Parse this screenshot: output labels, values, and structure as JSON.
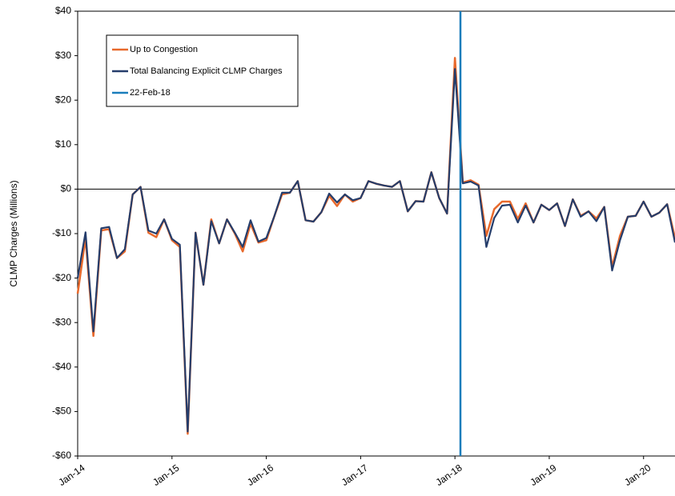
{
  "chart_data": {
    "type": "line",
    "y_label": "CLMP Charges (Millions)",
    "categories": [
      "Jan-14",
      null,
      null,
      null,
      null,
      null,
      null,
      null,
      null,
      null,
      null,
      null,
      "Jan-15",
      null,
      null,
      null,
      null,
      null,
      null,
      null,
      null,
      null,
      null,
      null,
      "Jan-16",
      null,
      null,
      null,
      null,
      null,
      null,
      null,
      null,
      null,
      null,
      null,
      "Jan-17",
      null,
      null,
      null,
      null,
      null,
      null,
      null,
      null,
      null,
      null,
      null,
      "Jan-18",
      null,
      null,
      null,
      null,
      null,
      null,
      null,
      null,
      null,
      null,
      null,
      "Jan-19",
      null,
      null,
      null,
      null,
      null,
      null,
      null,
      null,
      null,
      null,
      null,
      "Jan-20",
      null,
      null,
      null,
      null
    ],
    "series": [
      {
        "name": "Up to Congestion",
        "color": "#e8692c",
        "values": [
          -23.5,
          -11,
          -33,
          -9.3,
          -9,
          -15.5,
          -14,
          -1.2,
          0.5,
          -9.8,
          -10.8,
          -6.8,
          -11.5,
          -13,
          -55,
          -9.8,
          -21.5,
          -6.8,
          -12.2,
          -6.8,
          -10,
          -14,
          -7.8,
          -12,
          -11.5,
          -6.2,
          -1.2,
          -0.8,
          1.8,
          -7,
          -7.3,
          -5.2,
          -1.5,
          -3.8,
          -1.2,
          -2.8,
          -2,
          1.8,
          1.2,
          0.8,
          0.5,
          1.8,
          -5,
          -2.7,
          -2.8,
          3.8,
          -2,
          -5.5,
          29.5,
          1.5,
          2,
          1,
          -10.5,
          -4.5,
          -2.8,
          -2.8,
          -6.7,
          -3.2,
          -7.5,
          -3.5,
          -4.7,
          -3.2,
          -8.3,
          -2.3,
          -6,
          -5,
          -6.6,
          -4,
          -17.5,
          -10.5,
          -6.2,
          -6,
          -2.8,
          -6.2,
          -5.3,
          -3.4,
          -11
        ]
      },
      {
        "name": "Total Balancing Explicit CLMP Charges",
        "color": "#253d6b",
        "values": [
          -20,
          -9.7,
          -32,
          -8.8,
          -8.5,
          -15.5,
          -13.5,
          -1.2,
          0.5,
          -9.3,
          -10,
          -6.8,
          -11.2,
          -12.5,
          -54.5,
          -9.8,
          -21.5,
          -7.2,
          -12.2,
          -6.8,
          -9.8,
          -13,
          -7,
          -11.8,
          -11,
          -6.2,
          -0.8,
          -0.8,
          1.8,
          -7,
          -7.3,
          -5.2,
          -1,
          -3,
          -1.2,
          -2.5,
          -2,
          1.8,
          1.2,
          0.8,
          0.5,
          1.8,
          -5,
          -2.7,
          -2.8,
          3.8,
          -2,
          -5.5,
          27,
          1.3,
          1.7,
          0.8,
          -13,
          -6.5,
          -3.7,
          -3.5,
          -7.5,
          -3.7,
          -7.5,
          -3.5,
          -4.7,
          -3.2,
          -8.3,
          -2.3,
          -6.2,
          -5,
          -7.2,
          -4,
          -18.3,
          -11.5,
          -6.2,
          -6,
          -2.8,
          -6.2,
          -5.3,
          -3.4,
          -12
        ]
      }
    ],
    "vline": {
      "name": "22-Feb-18",
      "x": 48.7,
      "color": "#1a7dbb"
    },
    "ylim": [
      -60,
      40
    ],
    "yticks": [
      {
        "value": -60,
        "label": "-$60"
      },
      {
        "value": -50,
        "label": "-$50"
      },
      {
        "value": -40,
        "label": "-$40"
      },
      {
        "value": -30,
        "label": "-$30"
      },
      {
        "value": -20,
        "label": "-$20"
      },
      {
        "value": -10,
        "label": "-$10"
      },
      {
        "value": 0,
        "label": "$0"
      },
      {
        "value": 10,
        "label": "$10"
      },
      {
        "value": 20,
        "label": "$20"
      },
      {
        "value": 30,
        "label": "$30"
      },
      {
        "value": 40,
        "label": "$40"
      }
    ]
  }
}
